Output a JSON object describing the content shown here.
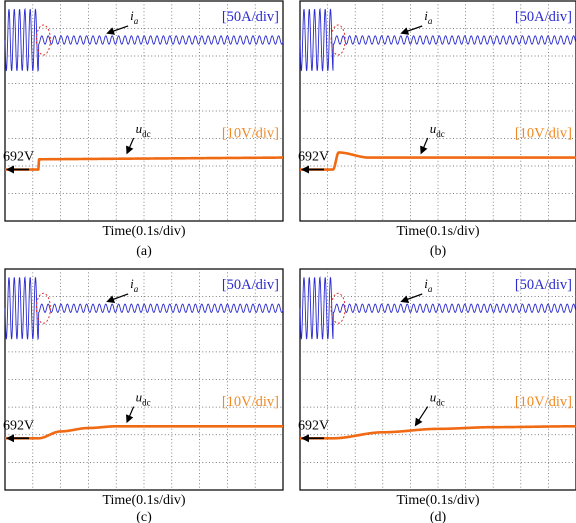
{
  "figure": {
    "panels": [
      {
        "id": "(a)",
        "time_label": "Time(0.1s/div)",
        "current_scale": "[50A/div]",
        "voltage_scale": "[10V/div]",
        "current_symbol": "i",
        "current_sub": "a",
        "voltage_symbol": "u",
        "voltage_sub": "dc",
        "dc_level": "692V"
      },
      {
        "id": "(b)",
        "time_label": "Time(0.1s/div)",
        "current_scale": "[50A/div]",
        "voltage_scale": "[10V/div]",
        "current_symbol": "i",
        "current_sub": "a",
        "voltage_symbol": "u",
        "voltage_sub": "dc",
        "dc_level": "692V"
      },
      {
        "id": "(c)",
        "time_label": "Time(0.1s/div)",
        "current_scale": "[50A/div]",
        "voltage_scale": "[10V/div]",
        "current_symbol": "i",
        "current_sub": "a",
        "voltage_symbol": "u",
        "voltage_sub": "dc",
        "dc_level": "692V"
      },
      {
        "id": "(d)",
        "time_label": "Time(0.1s/div)",
        "current_scale": "[50A/div]",
        "voltage_scale": "[10V/div]",
        "current_symbol": "i",
        "current_sub": "a",
        "voltage_symbol": "u",
        "voltage_sub": "dc",
        "dc_level": "692V"
      }
    ]
  },
  "colors": {
    "current": "#2a2ad0",
    "voltage": "#f06a14",
    "marker": "#e0302a"
  },
  "chart_data": [
    {
      "type": "line",
      "panel": "(a)",
      "time_div_s": 0.1,
      "current_div_A": 50,
      "voltage_div_V": 10,
      "step_time_div": 1.2,
      "series": [
        {
          "name": "ia",
          "values": [
            [
              0,
              "large"
            ],
            [
              1.2,
              "small"
            ],
            [
              10,
              "small"
            ]
          ]
        },
        {
          "name": "udc",
          "values": [
            [
              0,
              692
            ],
            [
              1.2,
              692
            ],
            [
              1.22,
              698
            ],
            [
              10,
              699
            ]
          ]
        }
      ]
    },
    {
      "type": "line",
      "panel": "(b)",
      "time_div_s": 0.1,
      "current_div_A": 50,
      "voltage_div_V": 10,
      "step_time_div": 1.2,
      "series": [
        {
          "name": "ia",
          "values": [
            [
              0,
              "large"
            ],
            [
              1.2,
              "small"
            ],
            [
              10,
              "small"
            ]
          ]
        },
        {
          "name": "udc",
          "values": [
            [
              0,
              692
            ],
            [
              1.2,
              692
            ],
            [
              1.4,
              702
            ],
            [
              2.5,
              699
            ],
            [
              4,
              699
            ],
            [
              10,
              699
            ]
          ]
        }
      ]
    },
    {
      "type": "line",
      "panel": "(c)",
      "time_div_s": 0.1,
      "current_div_A": 50,
      "voltage_div_V": 10,
      "step_time_div": 1.2,
      "series": [
        {
          "name": "ia",
          "values": [
            [
              0,
              "large"
            ],
            [
              1.2,
              "small"
            ],
            [
              10,
              "small"
            ]
          ]
        },
        {
          "name": "udc",
          "values": [
            [
              0,
              692
            ],
            [
              1.2,
              692
            ],
            [
              2,
              696
            ],
            [
              3,
              698
            ],
            [
              4,
              699
            ],
            [
              10,
              699
            ]
          ]
        }
      ]
    },
    {
      "type": "line",
      "panel": "(d)",
      "time_div_s": 0.1,
      "current_div_A": 50,
      "voltage_div_V": 10,
      "step_time_div": 1.2,
      "series": [
        {
          "name": "ia",
          "values": [
            [
              0,
              "large"
            ],
            [
              1.2,
              "small"
            ],
            [
              10,
              "small"
            ]
          ]
        },
        {
          "name": "udc",
          "values": [
            [
              0,
              692
            ],
            [
              1.2,
              692
            ],
            [
              3,
              695.5
            ],
            [
              5,
              697.5
            ],
            [
              7,
              698.5
            ],
            [
              10,
              699
            ]
          ]
        }
      ]
    }
  ]
}
